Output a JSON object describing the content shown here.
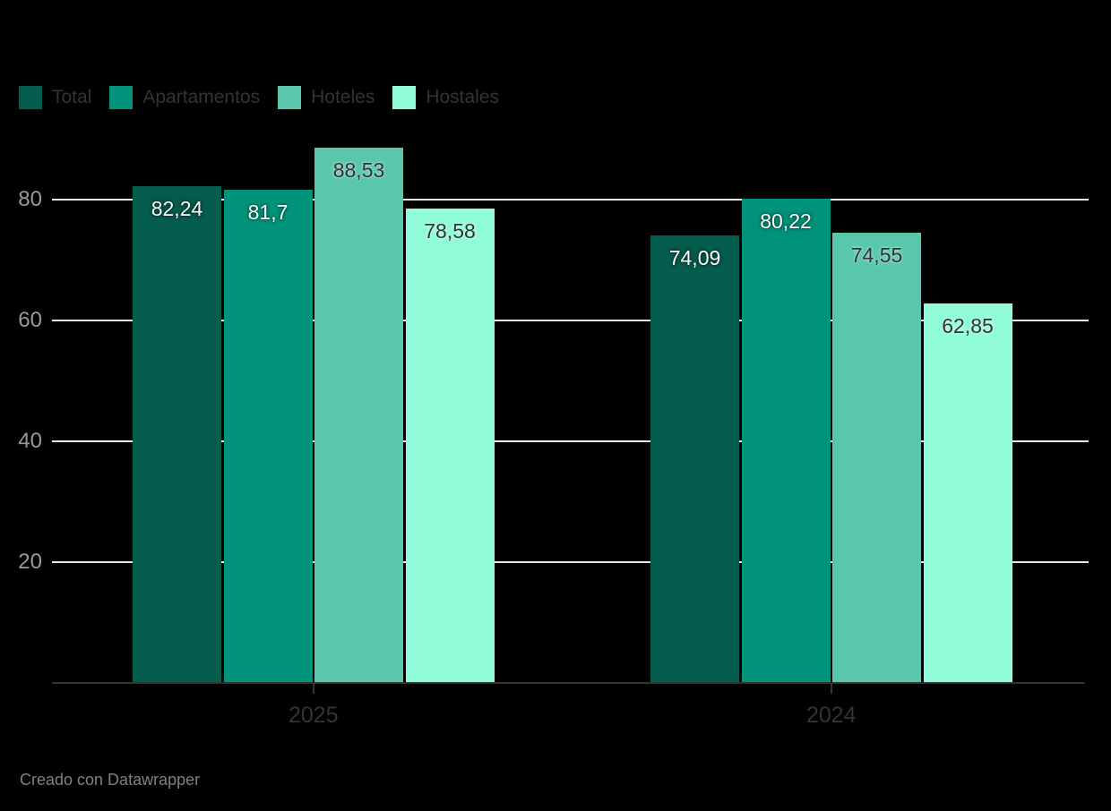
{
  "chart_data": {
    "type": "bar",
    "title": "",
    "categories": [
      "2025",
      "2024"
    ],
    "series": [
      {
        "name": "Total",
        "color": "#045c4d",
        "label_color": "#ffffff",
        "values": [
          82.24,
          74.09
        ],
        "labels": [
          "82,24",
          "74,09"
        ]
      },
      {
        "name": "Apartamentos",
        "color": "#009379",
        "label_color": "#ffffff",
        "values": [
          81.7,
          80.22
        ],
        "labels": [
          "81,7",
          "80,22"
        ]
      },
      {
        "name": "Hoteles",
        "color": "#58c7ac",
        "label_color": "#333333",
        "values": [
          88.53,
          74.55
        ],
        "labels": [
          "88,53",
          "74,55"
        ]
      },
      {
        "name": "Hostales",
        "color": "#90fcda",
        "label_color": "#333333",
        "values": [
          78.58,
          62.85
        ],
        "labels": [
          "78,58",
          "62,85"
        ]
      }
    ],
    "y_ticks": [
      20,
      40,
      60,
      80
    ],
    "y_tick_labels": [
      "20",
      "40",
      "60",
      "80"
    ],
    "ylim": [
      0,
      90.8
    ],
    "grid": true,
    "legend_position": "top-left",
    "footer": "Creado con Datawrapper",
    "colors": {
      "background": "#000000",
      "gridline": "#e8e8e8",
      "axis_line": "#333333",
      "y_tick_label": "#999999",
      "x_tick_label": "#333333",
      "legend_label": "#333333",
      "footer_text": "#808080"
    }
  }
}
